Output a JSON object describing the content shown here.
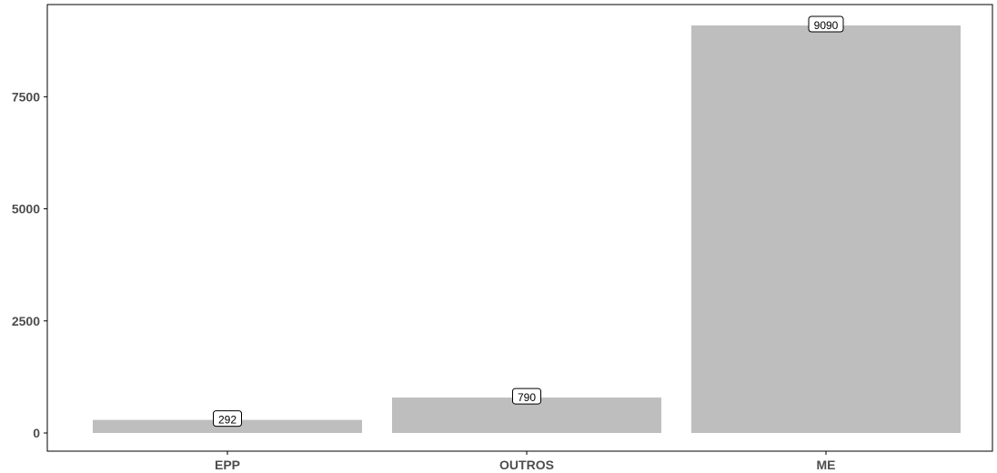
{
  "chart_data": {
    "type": "bar",
    "title": "",
    "xlabel": "",
    "ylabel": "",
    "categories": [
      "EPP",
      "OUTROS",
      "ME"
    ],
    "values": [
      292,
      790,
      9090
    ],
    "data_labels": [
      "292",
      "790",
      "9090"
    ],
    "ylim": [
      0,
      9500
    ],
    "y_ticks": [
      0,
      2500,
      5000,
      7500
    ],
    "y_tick_labels": [
      "0",
      "2500",
      "5000",
      "7500"
    ],
    "grid": false,
    "legend": "none",
    "bar_color": "#bebebe",
    "axis_color": "#000000"
  }
}
